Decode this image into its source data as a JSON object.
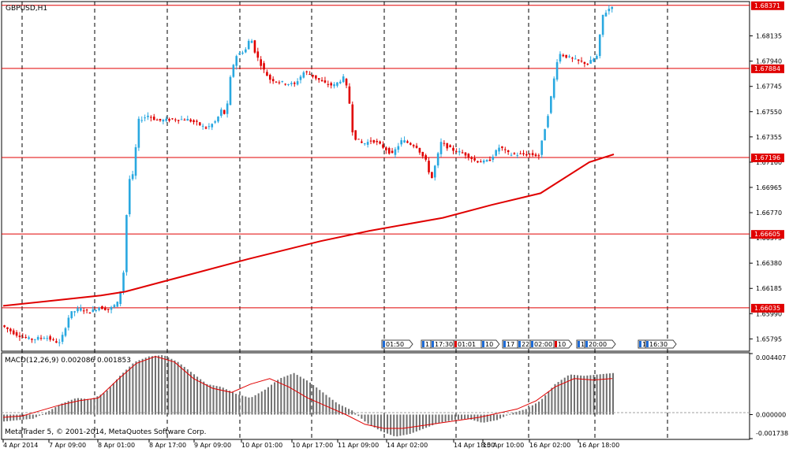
{
  "window": {
    "symbol_title": "GBPUSD,H1",
    "copyright": "MetaTrader 5, © 2001-2014, MetaQuotes Software Corp."
  },
  "chart_data": {
    "type": "candlestick",
    "symbol": "GBPUSD",
    "timeframe": "H1",
    "price_axis_ticks": [
      "1.68135",
      "1.67940",
      "1.67745",
      "1.67550",
      "1.67355",
      "1.67160",
      "1.66965",
      "1.66770",
      "1.66575",
      "1.66380",
      "1.66185",
      "1.65990",
      "1.65795"
    ],
    "price_axis_tick_values": [
      1.68135,
      1.6794,
      1.67745,
      1.6755,
      1.67355,
      1.6716,
      1.66965,
      1.6677,
      1.66575,
      1.6638,
      1.66185,
      1.6599,
      1.65795
    ],
    "ylim": [
      1.657,
      1.684
    ],
    "time_axis_ticks": [
      "4 Apr 2014",
      "7 Apr 09:00",
      "8 Apr 01:00",
      "8 Apr 17:00",
      "9 Apr 09:00",
      "10 Apr 01:00",
      "10 Apr 17:00",
      "11 Apr 09:00",
      "14 Apr 02:00",
      "14 Apr 18:00",
      "15 Apr 10:00",
      "16 Apr 02:00",
      "16 Apr 18:00"
    ],
    "horizontal_levels": [
      {
        "label": "1.68371",
        "value": 1.68371,
        "color": "#e00000"
      },
      {
        "label": "1.67884",
        "value": 1.67884,
        "color": "#e00000"
      },
      {
        "label": "1.67196",
        "value": 1.67196,
        "color": "#e00000"
      },
      {
        "label": "1.66605",
        "value": 1.66605,
        "color": "#e00000"
      },
      {
        "label": "1.66035",
        "value": 1.66035,
        "color": "#e00000"
      }
    ],
    "moving_average": {
      "color": "#e00000",
      "points": [
        [
          0,
          1.6605
        ],
        [
          10,
          1.6609
        ],
        [
          20,
          1.6613
        ],
        [
          25,
          1.6616
        ],
        [
          35,
          1.6626
        ],
        [
          50,
          1.6641
        ],
        [
          65,
          1.6655
        ],
        [
          75,
          1.6663
        ],
        [
          90,
          1.6673
        ],
        [
          100,
          1.6683
        ],
        [
          110,
          1.6692
        ],
        [
          120,
          1.6716
        ],
        [
          125,
          1.6722
        ]
      ]
    },
    "price_series": [
      [
        0,
        1.659
      ],
      [
        3,
        1.6583
      ],
      [
        6,
        1.6579
      ],
      [
        9,
        1.6581
      ],
      [
        12,
        1.6576
      ],
      [
        14,
        1.6599
      ],
      [
        16,
        1.6603
      ],
      [
        18,
        1.66
      ],
      [
        20,
        1.6604
      ],
      [
        22,
        1.6602
      ],
      [
        24,
        1.6608
      ],
      [
        25,
        1.6631
      ],
      [
        26,
        1.6702
      ],
      [
        27,
        1.6706
      ],
      [
        28,
        1.6748
      ],
      [
        30,
        1.6752
      ],
      [
        32,
        1.6748
      ],
      [
        35,
        1.6749
      ],
      [
        38,
        1.6749
      ],
      [
        40,
        1.6746
      ],
      [
        42,
        1.6742
      ],
      [
        44,
        1.6748
      ],
      [
        45,
        1.6756
      ],
      [
        46,
        1.6752
      ],
      [
        47,
        1.6785
      ],
      [
        48,
        1.6798
      ],
      [
        50,
        1.6803
      ],
      [
        51,
        1.6813
      ],
      [
        52,
        1.68
      ],
      [
        54,
        1.6785
      ],
      [
        55,
        1.678
      ],
      [
        58,
        1.6777
      ],
      [
        60,
        1.6776
      ],
      [
        62,
        1.6786
      ],
      [
        64,
        1.6782
      ],
      [
        66,
        1.6777
      ],
      [
        68,
        1.6775
      ],
      [
        70,
        1.6781
      ],
      [
        71,
        1.677
      ],
      [
        72,
        1.6736
      ],
      [
        74,
        1.673
      ],
      [
        76,
        1.6733
      ],
      [
        78,
        1.6728
      ],
      [
        80,
        1.6722
      ],
      [
        82,
        1.6733
      ],
      [
        85,
        1.6728
      ],
      [
        87,
        1.6716
      ],
      [
        88,
        1.6702
      ],
      [
        90,
        1.6731
      ],
      [
        92,
        1.6726
      ],
      [
        95,
        1.6722
      ],
      [
        97,
        1.6717
      ],
      [
        99,
        1.6716
      ],
      [
        100,
        1.6718
      ],
      [
        102,
        1.6728
      ],
      [
        104,
        1.6722
      ],
      [
        106,
        1.6722
      ],
      [
        108,
        1.6722
      ],
      [
        110,
        1.6721
      ],
      [
        112,
        1.6755
      ],
      [
        114,
        1.68
      ],
      [
        116,
        1.6797
      ],
      [
        118,
        1.6794
      ],
      [
        120,
        1.6792
      ],
      [
        122,
        1.6798
      ],
      [
        123,
        1.6829
      ],
      [
        125,
        1.6837
      ]
    ],
    "period_separators_index": [
      0,
      24,
      47,
      72,
      96,
      120,
      144,
      168,
      192,
      216,
      240,
      264,
      288
    ]
  },
  "time_markers": [
    {
      "label": "01:50",
      "color": "#1e6bd6"
    },
    {
      "label": "1",
      "color": "#1e6bd6"
    },
    {
      "label": "17:30",
      "color": "#1e6bd6"
    },
    {
      "label": "01:01",
      "color": "#e00000"
    },
    {
      "label": "10",
      "color": "#1e6bd6"
    },
    {
      "label": "17",
      "color": "#1e6bd6"
    },
    {
      "label": "22:00",
      "color": "#1e6bd6"
    },
    {
      "label": "02:00",
      "color": "#1e6bd6"
    },
    {
      "label": "10",
      "color": "#e00000"
    },
    {
      "label": "1",
      "color": "#1e6bd6"
    },
    {
      "label": "20:00",
      "color": "#1e6bd6"
    },
    {
      "label": "1",
      "color": "#1e6bd6"
    },
    {
      "label": "16:30",
      "color": "#1e6bd6"
    }
  ],
  "macd": {
    "title": "MACD(12,26,9) 0.002086 0.001853",
    "axis_ticks": [
      "0.004407",
      "0.000000",
      "-0.001738"
    ],
    "axis_values": [
      0.004407,
      0.0,
      -0.001738
    ],
    "histogram": [
      -0.0005,
      -0.0004,
      -0.0003,
      0.0002,
      0.0008,
      0.0012,
      0.0011,
      0.0016,
      0.0028,
      0.0038,
      0.0042,
      0.0043,
      0.0038,
      0.003,
      0.0022,
      0.002,
      0.0015,
      0.0012,
      0.0018,
      0.0026,
      0.003,
      0.0024,
      0.0016,
      0.0008,
      0.0003,
      -0.0006,
      -0.0012,
      -0.0016,
      -0.0014,
      -0.001,
      -0.0006,
      -0.0004,
      -0.0003,
      -0.0006,
      -0.0004,
      0.0001,
      0.0004,
      0.001,
      0.0022,
      0.0029,
      0.0028,
      0.0029,
      0.003
    ],
    "signal": [
      -0.0002,
      -0.0001,
      0.0003,
      0.0007,
      0.001,
      0.0012,
      0.0025,
      0.0037,
      0.0042,
      0.0038,
      0.0026,
      0.0019,
      0.0016,
      0.0022,
      0.0026,
      0.002,
      0.0012,
      0.0006,
      0.0,
      -0.0007,
      -0.001,
      -0.001,
      -0.0008,
      -0.0006,
      -0.0004,
      -0.0002,
      0.0001,
      0.0004,
      0.001,
      0.002,
      0.0026,
      0.0025,
      0.0026
    ],
    "hist_color": "#707070",
    "signal_color": "#e00000"
  },
  "colors": {
    "bull": "#29a8e0",
    "bear": "#e00000",
    "grid": "#000000",
    "bg": "#ffffff"
  }
}
